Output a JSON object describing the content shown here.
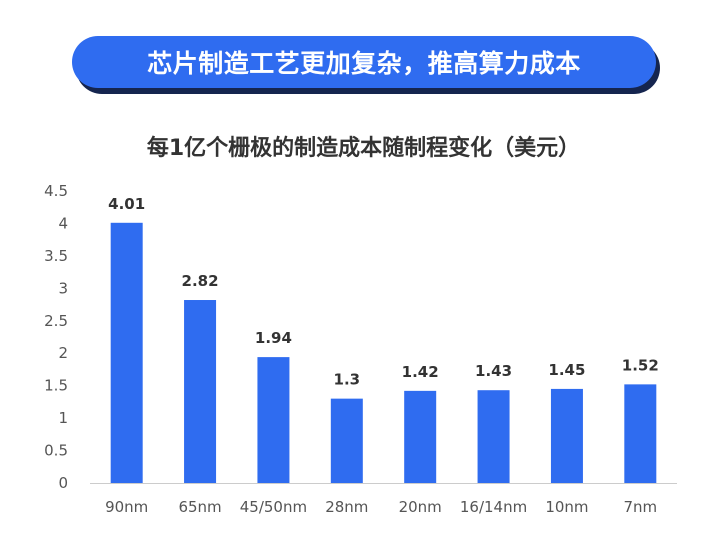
{
  "banner": {
    "text": "芯片制造工艺更加复杂，推高算力成本"
  },
  "colors": {
    "bar": "#2f6cf0",
    "banner": "#2f6cf0",
    "banner_shadow": "#15254f",
    "axis": "#cccccc"
  },
  "chart_data": {
    "type": "bar",
    "title": "每1亿个栅极的制造成本随制程变化（美元）",
    "xlabel": "",
    "ylabel": "",
    "categories": [
      "90nm",
      "65nm",
      "45/50nm",
      "28nm",
      "20nm",
      "16/14nm",
      "10nm",
      "7nm"
    ],
    "values": [
      4.01,
      2.82,
      1.94,
      1.3,
      1.42,
      1.43,
      1.45,
      1.52
    ],
    "data_labels": [
      "4.01",
      "2.82",
      "1.94",
      "1.3",
      "1.42",
      "1.43",
      "1.45",
      "1.52"
    ],
    "ylim": [
      0,
      4.5
    ],
    "yticks": [
      "0",
      "0.5",
      "1",
      "1.5",
      "2",
      "2.5",
      "3",
      "3.5",
      "4",
      "4.5"
    ],
    "grid": false,
    "legend": "none"
  }
}
